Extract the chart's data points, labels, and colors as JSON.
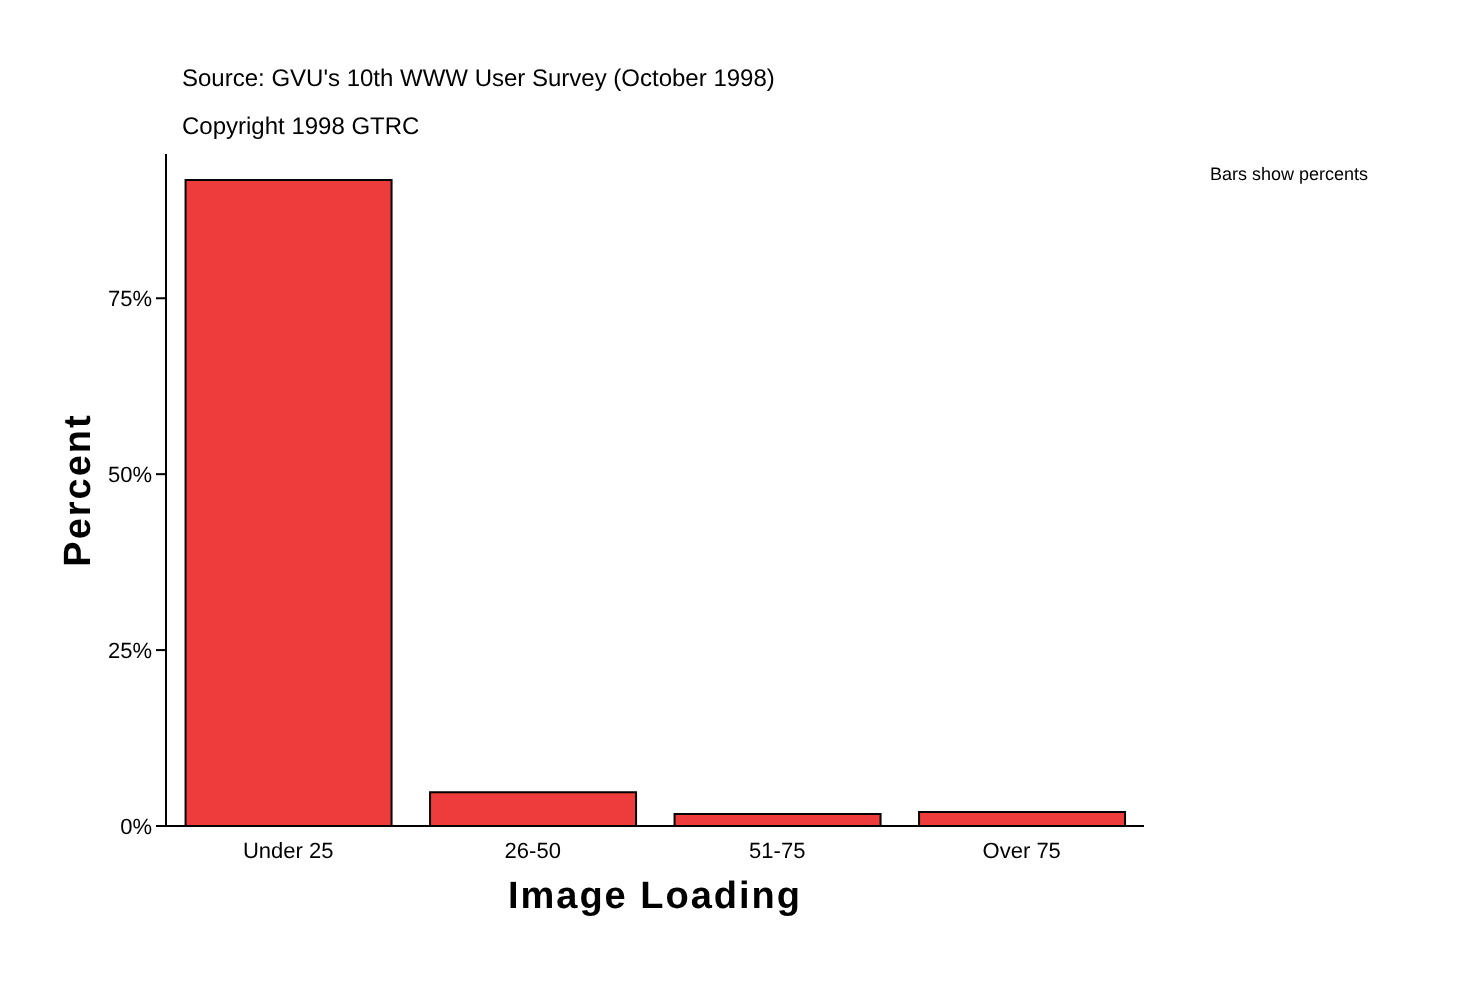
{
  "chart_data": {
    "type": "bar",
    "title": "Source: GVU's 10th WWW User Survey (October 1998)",
    "subtitle": "Copyright 1998 GTRC",
    "xlabel": "Image Loading",
    "ylabel": "Percent",
    "annotations": [
      "Bars show percents"
    ],
    "categories": [
      "Under 25",
      "26-50",
      "51-75",
      "Over 75"
    ],
    "values": [
      91.8,
      4.8,
      1.7,
      2.0
    ],
    "color": "#ee3b3b",
    "ylim": [
      0,
      95.5
    ],
    "yticks": [
      {
        "value": 0,
        "label": "0%"
      },
      {
        "value": 25,
        "label": "25%"
      },
      {
        "value": 50,
        "label": "50%"
      },
      {
        "value": 75,
        "label": "75%"
      }
    ],
    "grid": false,
    "legend": false
  }
}
